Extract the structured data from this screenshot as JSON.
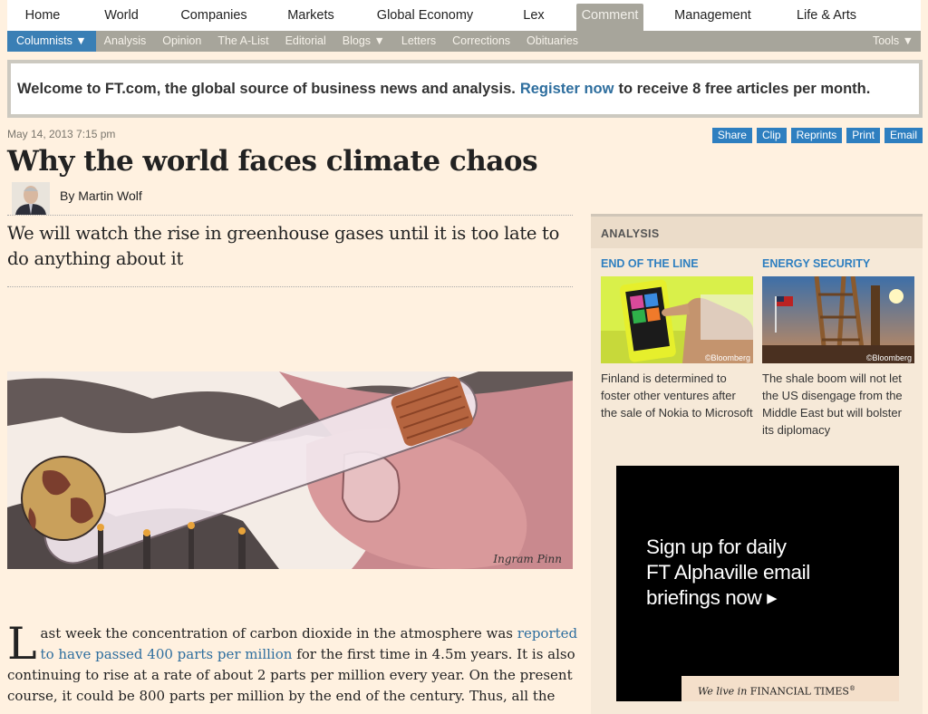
{
  "topnav": {
    "tabs": [
      {
        "label": "Home",
        "active": false
      },
      {
        "label": "World",
        "active": false
      },
      {
        "label": "Companies",
        "active": false
      },
      {
        "label": "Markets",
        "active": false
      },
      {
        "label": "Global Economy",
        "active": false
      },
      {
        "label": "Lex",
        "active": false
      },
      {
        "label": "Comment",
        "active": true
      },
      {
        "label": "Management",
        "active": false
      },
      {
        "label": "Life & Arts",
        "active": false
      }
    ]
  },
  "subnav": {
    "items": [
      "Columnists ▼",
      "Analysis",
      "Opinion",
      "The A-List",
      "Editorial",
      "Blogs ▼",
      "Letters",
      "Corrections",
      "Obituaries"
    ],
    "tools": "Tools ▼"
  },
  "welcome": {
    "text_before": "Welcome to FT.com, the global source of business news and analysis.",
    "link": "Register now",
    "text_after": "to receive 8 free articles per month."
  },
  "article": {
    "date": "May 14, 2013 7:15 pm",
    "tools": [
      "Share",
      "Clip",
      "Reprints",
      "Print",
      "Email"
    ],
    "headline": "Why the world faces climate chaos",
    "byline": "By Martin Wolf",
    "standfirst": "We will watch the rise in greenhouse gases until it is too late to do anything about it",
    "illustration_signature": "Ingram Pinn",
    "body": {
      "drop_cap": "L",
      "p1_a": "ast week the concentration of carbon dioxide in the atmosphere was ",
      "p1_link": "reported to have passed 400 parts per million",
      "p1_b": " for the first time in 4.5m years. It is also continuing to rise at a rate of about 2 parts per million every year. On the present course, it could be 800 parts per million by the end of the century. Thus, all the"
    }
  },
  "sidebar": {
    "header": "ANALYSIS",
    "cards": [
      {
        "kicker": "END OF THE LINE",
        "credit": "©Bloomberg",
        "desc": "Finland is determined to foster other ventures after the sale of Nokia to Microsoft"
      },
      {
        "kicker": "ENERGY SECURITY",
        "credit": "©Bloomberg",
        "desc": "The shale boom will not let the US disengage from the Middle East but will bolster its diplomacy"
      }
    ]
  },
  "ad": {
    "line1": "Sign up for daily",
    "line2": "FT Alphaville email",
    "line3": "briefings now ▸",
    "strip_italic": "We live in",
    "strip_brand": "FINANCIAL TIMES",
    "strip_mark": "®"
  },
  "colors": {
    "accent_blue": "#2e7fc0",
    "link_blue": "#2e6e9e",
    "page_bg": "#fff1e0",
    "nav_grey": "#a7a59b"
  }
}
